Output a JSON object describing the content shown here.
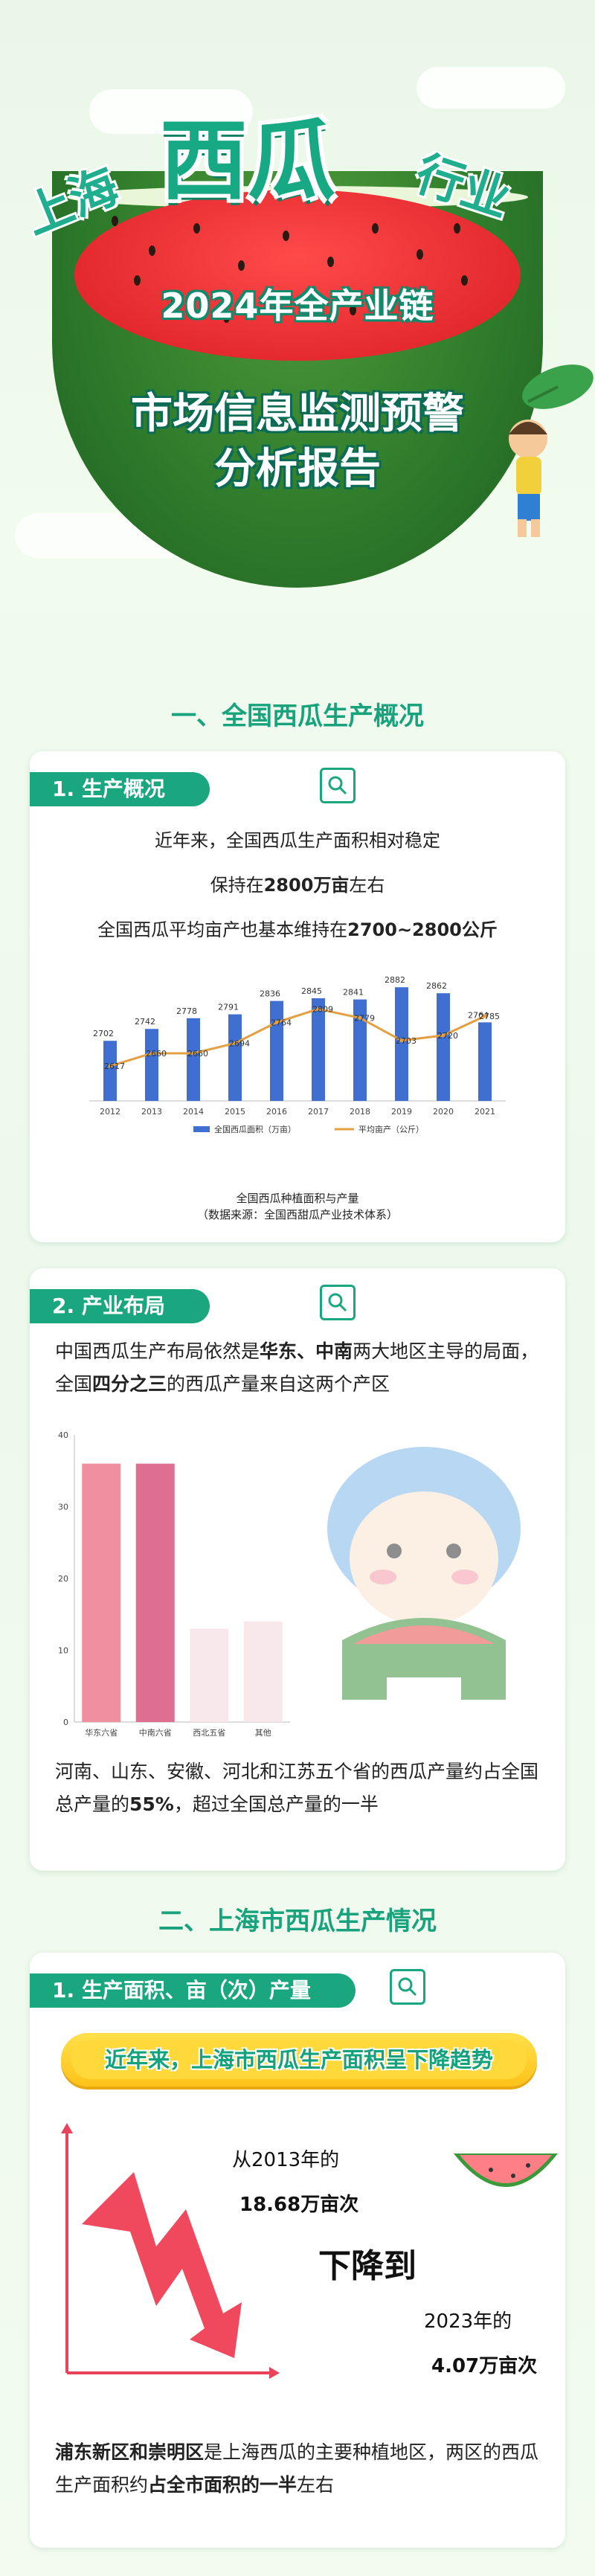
{
  "hero": {
    "title_left": "上海",
    "title_main": "西瓜",
    "title_right": "行业",
    "subtitle": "2024年全产业链",
    "report_line1": "市场信息监测预警",
    "report_line2": "分析报告"
  },
  "section1": {
    "title": "一、全国西瓜生产概况",
    "card1": {
      "tab": "1. 生产概况",
      "line1": "近年来，全国西瓜生产面积相对稳定",
      "line2_pre": "保持在",
      "line2_hl": "2800万亩",
      "line2_post": "左右",
      "line3_pre": "全国西瓜平均亩产也基本维持在",
      "line3_hl": "2700~2800公斤",
      "caption1": "全国西瓜种植面积与产量",
      "caption2": "（数据来源：全国西甜瓜产业技术体系）"
    },
    "card2": {
      "tab": "2. 产业布局",
      "para1_pre": "中国西瓜生产布局依然是",
      "para1_hl1": "华东",
      "para1_sep": "、",
      "para1_hl2": "中南",
      "para1_mid": "两大地区主导的局面，全国",
      "para1_hl3": "四分之三",
      "para1_post": "的西瓜产量来自这两个产区",
      "para2_pre": "河南、山东、安徽、河北和江苏五个省的西瓜产量约占全国总产量的",
      "para2_hl": "55%",
      "para2_post": "，超过全国总产量的一半"
    }
  },
  "section2": {
    "title": "二、上海市西瓜生产情况",
    "card1": {
      "tab": "1. 生产面积、亩（次）产量",
      "banner": "近年来，上海市西瓜生产面积呈下降趋势",
      "from_label": "从2013年的",
      "from_value": "18.68万亩次",
      "drop_word": "下降到",
      "to_label": "2023年的",
      "to_value": "4.07万亩次",
      "para_hl1": "浦东新区和崇明区",
      "para_mid": "是上海西瓜的主要种植地区，两区的西瓜生产面积约",
      "para_hl2": "占全市面积的一半",
      "para_post": "左右"
    }
  },
  "colors": {
    "accent": "#1aa780",
    "bar_area": "#3e6fd1",
    "line_yield": "#e3a042",
    "bar_east": "#ef8fa0",
    "bar_south": "#de6f93",
    "bar_other": "#f7e3e8",
    "banner": "#ffd93a"
  },
  "chart_data": [
    {
      "type": "bar",
      "categories": [
        "2012",
        "2013",
        "2014",
        "2015",
        "2016",
        "2017",
        "2018",
        "2019",
        "2020",
        "2021"
      ],
      "series": [
        {
          "name": "全国西瓜面积（万亩）",
          "type": "bar",
          "values": [
            2702,
            2742,
            2778,
            2791,
            2836,
            2845,
            2841,
            2882,
            2862,
            2764
          ]
        },
        {
          "name": "平均亩产（公斤）",
          "type": "line",
          "values": [
            2617,
            2660,
            2660,
            2694,
            2764,
            2809,
            2779,
            2703,
            2720,
            2785
          ]
        }
      ],
      "legend": "bottom"
    },
    {
      "type": "bar",
      "categories": [
        "华东六省",
        "中南六省",
        "西北五省",
        "其他"
      ],
      "values": [
        36,
        36,
        13,
        14
      ],
      "yticks": [
        0,
        10,
        20,
        30,
        40
      ],
      "ylim": [
        0,
        40
      ]
    }
  ]
}
